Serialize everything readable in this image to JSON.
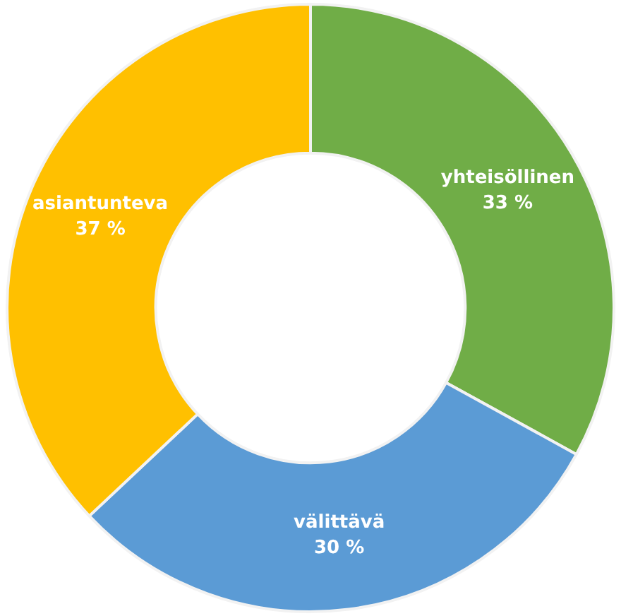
{
  "chart_data": {
    "type": "donut",
    "categories": [
      "yhteisöllinen",
      "välittävä",
      "asiantunteva"
    ],
    "values": [
      33,
      30,
      37
    ],
    "colors": [
      "#70ad47",
      "#5b9bd5",
      "#ffc000"
    ],
    "value_labels": [
      "33 %",
      "30 %",
      "37 %"
    ],
    "legend": false
  }
}
